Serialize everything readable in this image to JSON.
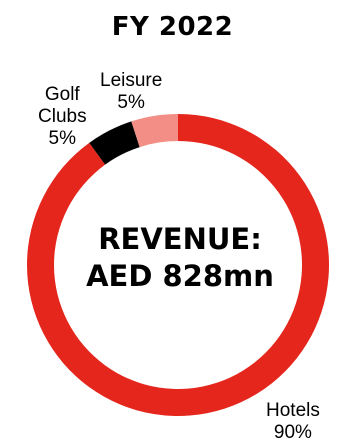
{
  "chart_data": {
    "type": "pie",
    "title": "FY 2022",
    "center_label": [
      "REVENUE:",
      "AED 828mn"
    ],
    "slices": [
      {
        "name": "Hotels",
        "value": 90,
        "value_label": "90%",
        "color": "#e4261c"
      },
      {
        "name": "Golf Clubs",
        "name_lines": [
          "Golf",
          "Clubs"
        ],
        "value": 5,
        "value_label": "5%",
        "color": "#000000"
      },
      {
        "name": "Leisure",
        "value": 5,
        "value_label": "5%",
        "color": "#f28e85"
      }
    ],
    "style": "donut",
    "legend": "none"
  }
}
